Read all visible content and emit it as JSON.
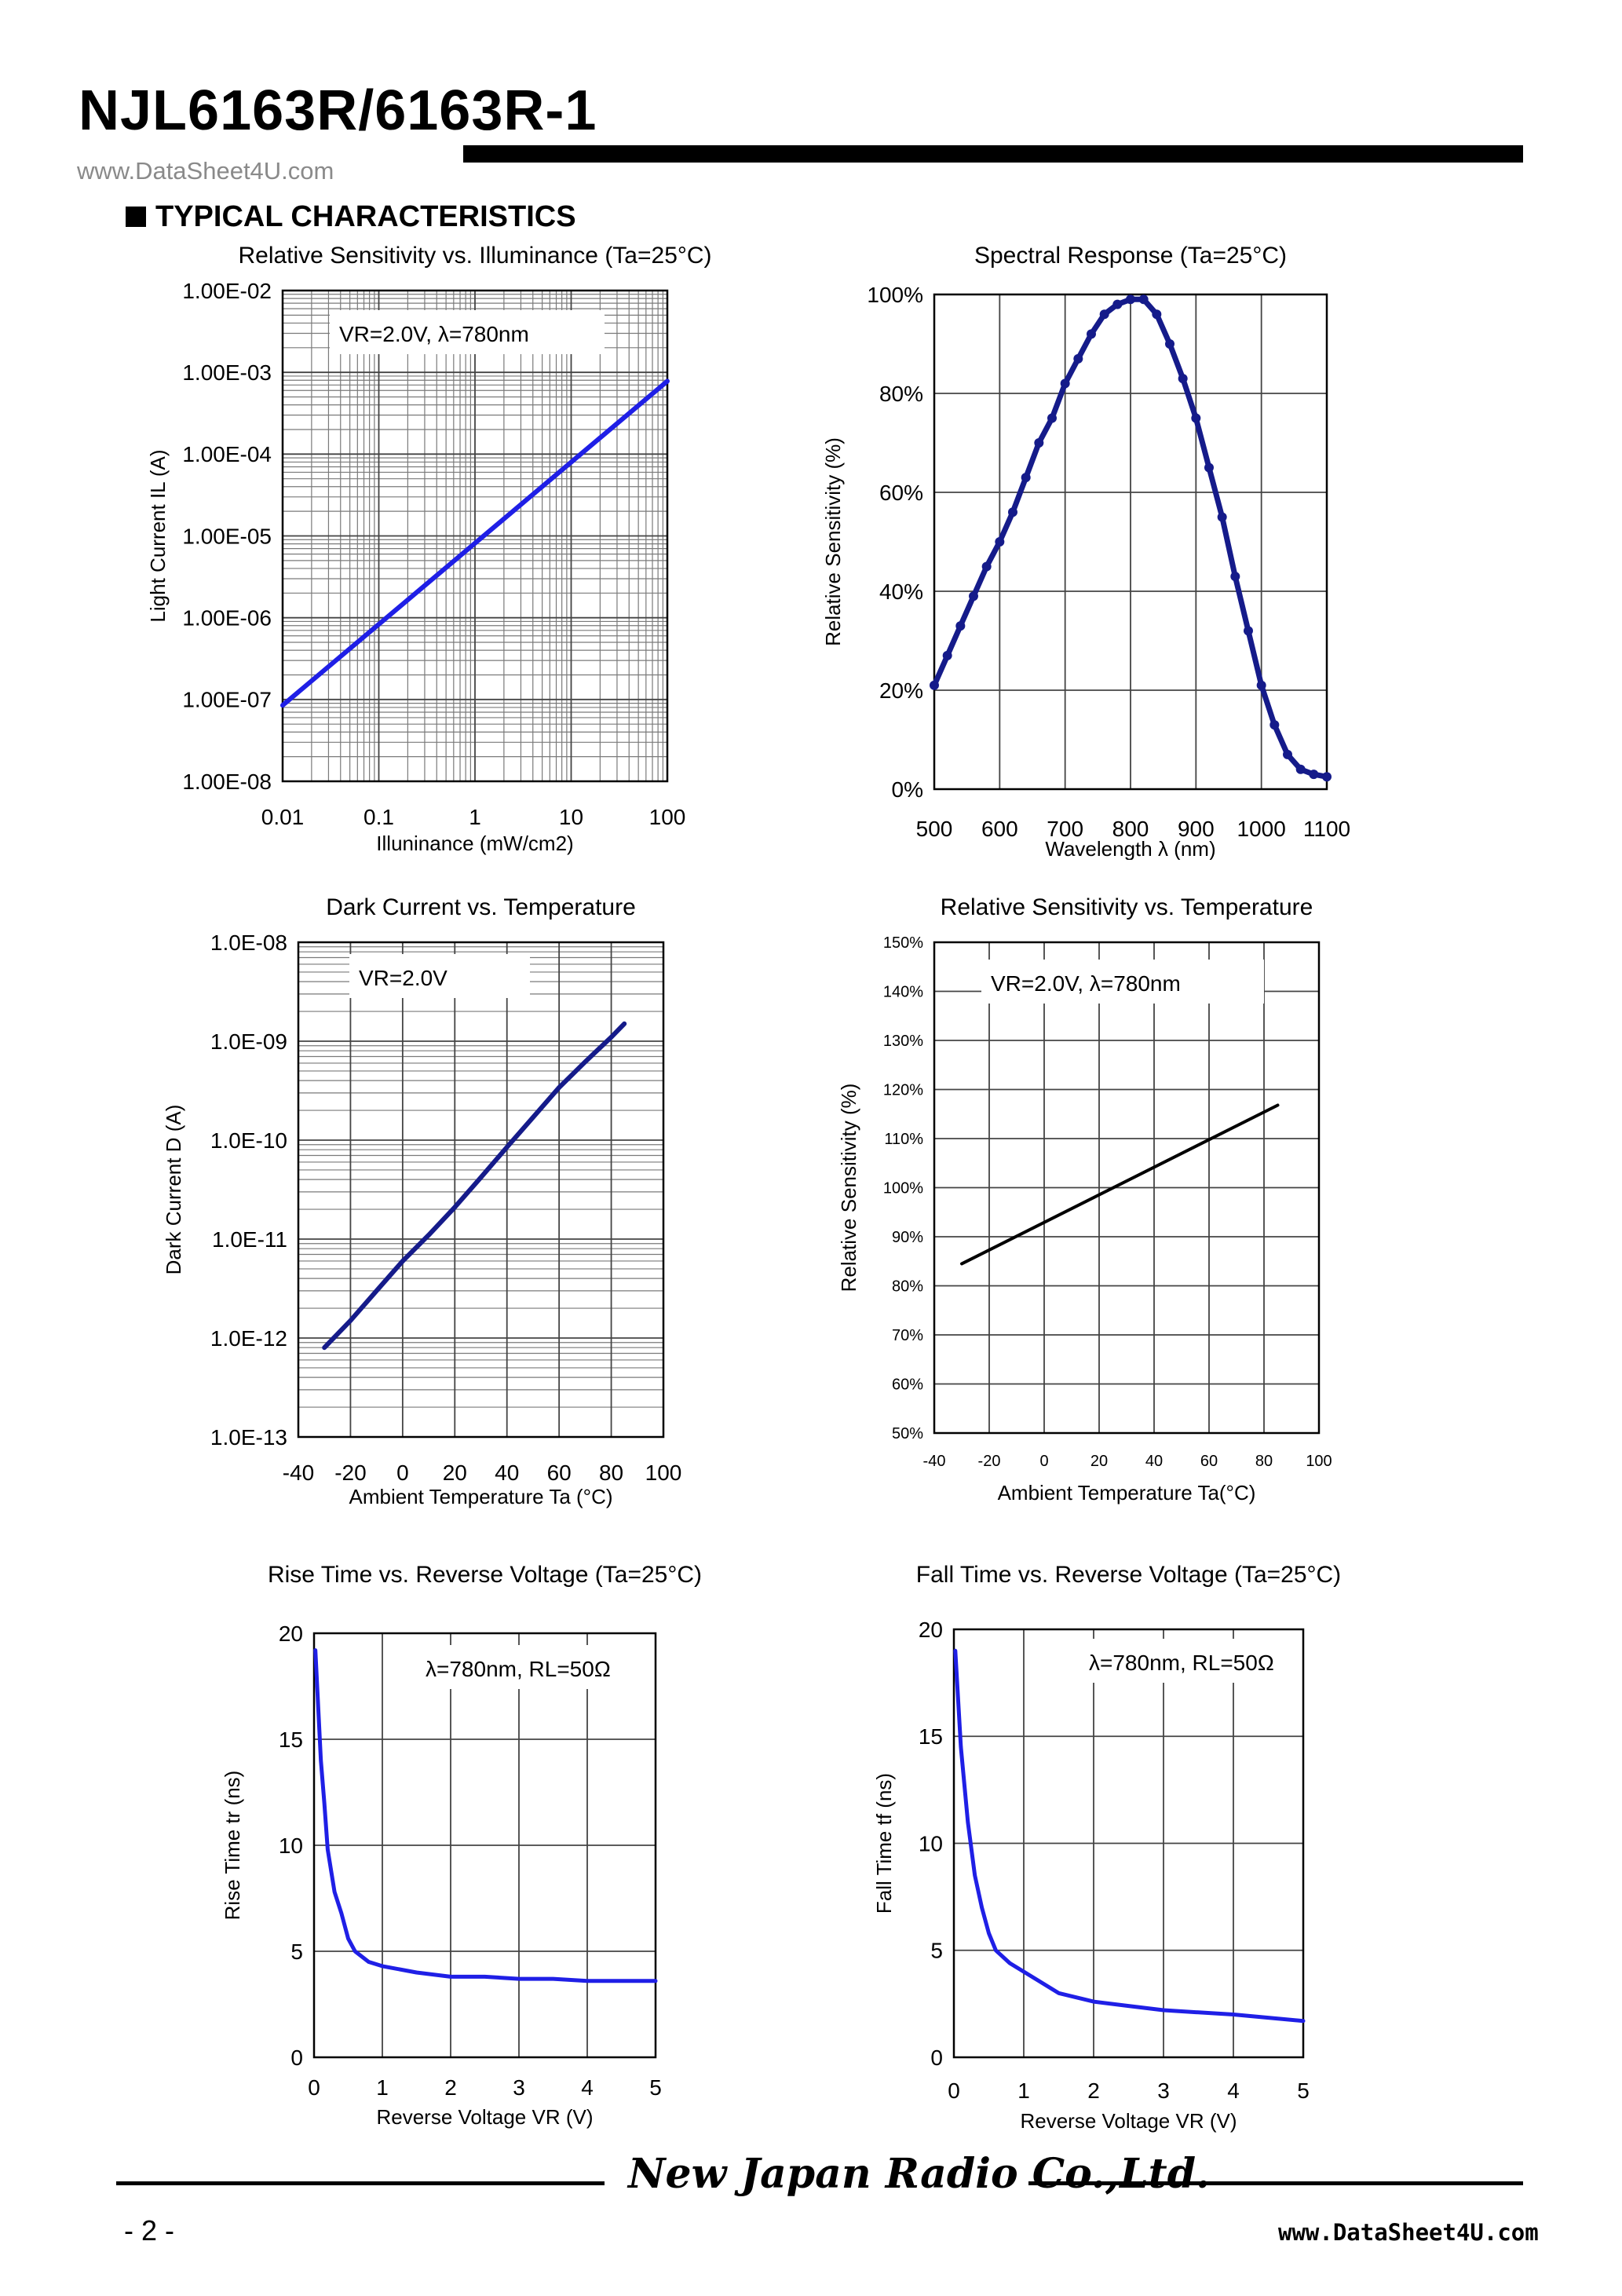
{
  "header": {
    "title": "NJL6163R/6163R-1",
    "watermark": "www.DataSheet4U.com"
  },
  "section_title": "TYPICAL CHARACTERISTICS",
  "footer": {
    "page": "- 2 -",
    "logo": "New Japan Radio Co.,Ltd.",
    "url": "www.DataSheet4U.com"
  },
  "colors": {
    "blue": "#1f1fe6",
    "navy": "#151b8a",
    "black": "#000000"
  },
  "chart_data": [
    {
      "id": "c1",
      "type": "line",
      "title": "Relative Sensitivity vs. Illuminance (Ta=25°C)",
      "xlabel": "Illuninance (mW/cm2)",
      "ylabel": "Light Current IL (A)",
      "annotation": "VR=2.0V, λ=780nm",
      "xscale": "log",
      "yscale": "log",
      "xlim": [
        0.01,
        100
      ],
      "ylim": [
        1e-08,
        0.01
      ],
      "xticks": [
        0.01,
        0.1,
        1,
        10,
        100
      ],
      "xticklabels": [
        "0.01",
        "0.1",
        "1",
        "10",
        "100"
      ],
      "yticks": [
        1e-08,
        1e-07,
        1e-06,
        1e-05,
        0.0001,
        0.001,
        0.01
      ],
      "yticklabels": [
        "1.00E-08",
        "1.00E-07",
        "1.00E-06",
        "1.00E-05",
        "1.00E-04",
        "1.00E-03",
        "1.00E-02"
      ],
      "grid": "minor",
      "series": [
        {
          "color": "#1f1fe6",
          "x": [
            0.01,
            100
          ],
          "y": [
            8.5e-08,
            0.00078
          ]
        }
      ]
    },
    {
      "id": "c2",
      "type": "line",
      "title": "Spectral Response (Ta=25°C)",
      "xlabel": "Wavelength λ (nm)",
      "ylabel": "Relative Sensitivity (%)",
      "xlim": [
        500,
        1100
      ],
      "ylim": [
        0,
        100
      ],
      "xticks": [
        500,
        600,
        700,
        800,
        900,
        1000,
        1100
      ],
      "xticklabels": [
        "500",
        "600",
        "700",
        "800",
        "900",
        "1000",
        "1100"
      ],
      "yticks": [
        0,
        20,
        40,
        60,
        80,
        100
      ],
      "yticklabels": [
        "0%",
        "20%",
        "40%",
        "60%",
        "80%",
        "100%"
      ],
      "grid": "major",
      "marker": "dot",
      "series": [
        {
          "color": "#151b8a",
          "x": [
            500,
            520,
            540,
            560,
            580,
            600,
            620,
            640,
            660,
            680,
            700,
            720,
            740,
            760,
            780,
            800,
            820,
            840,
            860,
            880,
            900,
            920,
            940,
            960,
            980,
            1000,
            1020,
            1040,
            1060,
            1080,
            1100
          ],
          "y": [
            21,
            27,
            33,
            39,
            45,
            50,
            56,
            63,
            70,
            75,
            82,
            87,
            92,
            96,
            98,
            99,
            99,
            96,
            90,
            83,
            75,
            65,
            55,
            43,
            32,
            21,
            13,
            7,
            4,
            3,
            2.5
          ]
        }
      ]
    },
    {
      "id": "c3",
      "type": "line",
      "title": "Dark Current vs. Temperature",
      "xlabel": "Ambient Temperature Ta (°C)",
      "ylabel": "Dark Current D (A)",
      "annotation": "VR=2.0V",
      "yscale": "log",
      "xlim": [
        -40,
        100
      ],
      "ylim": [
        1e-13,
        1e-08
      ],
      "xticks": [
        -40,
        -20,
        0,
        20,
        40,
        60,
        80,
        100
      ],
      "xticklabels": [
        "-40",
        "-20",
        "0",
        "20",
        "40",
        "60",
        "80",
        "100"
      ],
      "yticks": [
        1e-13,
        1e-12,
        1e-11,
        1e-10,
        1e-09,
        1e-08
      ],
      "yticklabels": [
        "1.0E-13",
        "1.0E-12",
        "1.0E-11",
        "1.0E-10",
        "1.0E-09",
        "1.0E-08"
      ],
      "grid": "minor",
      "series": [
        {
          "color": "#151b8a",
          "x": [
            -30,
            -20,
            -10,
            0,
            10,
            20,
            30,
            40,
            50,
            60,
            70,
            80,
            85
          ],
          "y": [
            8e-13,
            1.5e-12,
            3e-12,
            6e-12,
            1.1e-11,
            2.1e-11,
            4.2e-11,
            8.5e-11,
            1.7e-10,
            3.4e-10,
            6.2e-10,
            1.1e-09,
            1.5e-09
          ]
        }
      ]
    },
    {
      "id": "c4",
      "type": "line",
      "title": "Relative Sensitivity vs. Temperature",
      "xlabel": "Ambient Temperature Ta(°C)",
      "ylabel": "Relative Sensitivity (%)",
      "annotation": "VR=2.0V, λ=780nm",
      "xlim": [
        -40,
        100
      ],
      "ylim": [
        50,
        150
      ],
      "xticks": [
        -40,
        -20,
        0,
        20,
        40,
        60,
        80,
        100
      ],
      "xticklabels": [
        "-40",
        "-20",
        "0",
        "20",
        "40",
        "60",
        "80",
        "100"
      ],
      "yticks": [
        50,
        60,
        70,
        80,
        90,
        100,
        110,
        120,
        130,
        140,
        150
      ],
      "yticklabels": [
        "50%",
        "60%",
        "70%",
        "80%",
        "90%",
        "100%",
        "110%",
        "120%",
        "130%",
        "140%",
        "150%"
      ],
      "grid": "major",
      "series": [
        {
          "color": "#000000",
          "x": [
            -30,
            85
          ],
          "y": [
            84.5,
            116.8
          ]
        }
      ]
    },
    {
      "id": "c5",
      "type": "line",
      "title": "Rise Time vs. Reverse Voltage (Ta=25°C)",
      "xlabel": "Reverse Voltage VR (V)",
      "ylabel": "Rise Time tr (ns)",
      "annotation": "λ=780nm, RL=50Ω",
      "xlim": [
        0,
        5
      ],
      "ylim": [
        0,
        20
      ],
      "xticks": [
        0,
        1,
        2,
        3,
        4,
        5
      ],
      "xticklabels": [
        "0",
        "1",
        "2",
        "3",
        "4",
        "5"
      ],
      "yticks": [
        0,
        5,
        10,
        15,
        20
      ],
      "yticklabels": [
        "0",
        "5",
        "10",
        "15",
        "20"
      ],
      "grid": "major",
      "series": [
        {
          "color": "#1f1fe6",
          "x": [
            0.02,
            0.1,
            0.15,
            0.2,
            0.3,
            0.4,
            0.5,
            0.6,
            0.8,
            1.0,
            1.5,
            2.0,
            2.5,
            3.0,
            3.5,
            4.0,
            4.5,
            5.0
          ],
          "y": [
            19.2,
            14,
            12,
            9.8,
            7.8,
            6.8,
            5.6,
            5.0,
            4.5,
            4.3,
            4.0,
            3.8,
            3.8,
            3.7,
            3.7,
            3.6,
            3.6,
            3.6
          ]
        }
      ]
    },
    {
      "id": "c6",
      "type": "line",
      "title": "Fall Time vs. Reverse Voltage (Ta=25°C)",
      "xlabel": "Reverse Voltage VR (V)",
      "ylabel": "Fall Time tf (ns)",
      "annotation": "λ=780nm, RL=50Ω",
      "xlim": [
        0,
        5
      ],
      "ylim": [
        0,
        20
      ],
      "xticks": [
        0,
        1,
        2,
        3,
        4,
        5
      ],
      "xticklabels": [
        "0",
        "1",
        "2",
        "3",
        "4",
        "5"
      ],
      "yticks": [
        0,
        5,
        10,
        15,
        20
      ],
      "yticklabels": [
        "0",
        "5",
        "10",
        "15",
        "20"
      ],
      "grid": "major",
      "series": [
        {
          "color": "#1f1fe6",
          "x": [
            0.02,
            0.1,
            0.2,
            0.3,
            0.4,
            0.5,
            0.6,
            0.8,
            1.0,
            1.2,
            1.5,
            2.0,
            2.5,
            3.0,
            3.5,
            4.0,
            4.5,
            5.0
          ],
          "y": [
            19,
            14.5,
            11,
            8.5,
            7,
            5.8,
            5.0,
            4.4,
            4.0,
            3.6,
            3.0,
            2.6,
            2.4,
            2.2,
            2.1,
            2.0,
            1.85,
            1.7
          ]
        }
      ]
    }
  ]
}
